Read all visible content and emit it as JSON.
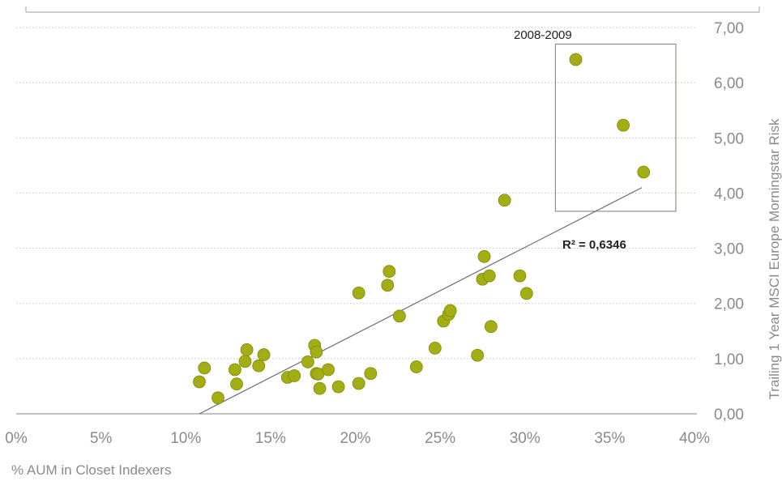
{
  "chart_data": {
    "type": "scatter",
    "title": "",
    "xlabel": "% AUM in Closet Indexers",
    "ylabel": "Trailing 1 Year MSCI Europe Morningstar Risk",
    "xlim": [
      0,
      0.4
    ],
    "ylim": [
      0,
      7
    ],
    "x_ticks": [
      "0%",
      "5%",
      "10%",
      "15%",
      "20%",
      "25%",
      "30%",
      "35%",
      "40%"
    ],
    "y_ticks": [
      "0,00",
      "1,00",
      "2,00",
      "3,00",
      "4,00",
      "5,00",
      "6,00",
      "7,00"
    ],
    "grid": true,
    "y_axis_position": "right",
    "series": [
      {
        "points": [
          [
            0.108,
            0.58
          ],
          [
            0.111,
            0.83
          ],
          [
            0.119,
            0.29
          ],
          [
            0.129,
            0.8
          ],
          [
            0.13,
            0.54
          ],
          [
            0.135,
            0.95
          ],
          [
            0.136,
            1.16
          ],
          [
            0.143,
            0.87
          ],
          [
            0.146,
            1.07
          ],
          [
            0.16,
            0.66
          ],
          [
            0.164,
            0.69
          ],
          [
            0.172,
            0.94
          ],
          [
            0.176,
            1.24
          ],
          [
            0.177,
            1.12
          ],
          [
            0.177,
            0.73
          ],
          [
            0.178,
            0.72
          ],
          [
            0.179,
            0.46
          ],
          [
            0.184,
            0.8
          ],
          [
            0.19,
            0.49
          ],
          [
            0.202,
            0.55
          ],
          [
            0.202,
            2.19
          ],
          [
            0.209,
            0.73
          ],
          [
            0.219,
            2.33
          ],
          [
            0.22,
            2.58
          ],
          [
            0.226,
            1.77
          ],
          [
            0.236,
            0.85
          ],
          [
            0.247,
            1.19
          ],
          [
            0.252,
            1.68
          ],
          [
            0.255,
            1.8
          ],
          [
            0.256,
            1.87
          ],
          [
            0.272,
            1.06
          ],
          [
            0.275,
            2.44
          ],
          [
            0.276,
            2.85
          ],
          [
            0.279,
            2.5
          ],
          [
            0.28,
            1.58
          ],
          [
            0.288,
            3.87
          ],
          [
            0.297,
            2.5
          ],
          [
            0.301,
            2.18
          ],
          [
            0.33,
            6.42
          ],
          [
            0.358,
            5.23
          ],
          [
            0.37,
            4.38
          ]
        ],
        "color": "#a3ad14"
      }
    ],
    "trendline": {
      "r_squared_label": "R² = 0,6346",
      "x": [
        0.108,
        0.369
      ],
      "y": [
        0.0,
        4.1
      ]
    },
    "annotations": [
      {
        "text": "2008-2009",
        "box_x": [
          0.318,
          0.389
        ],
        "box_y": [
          3.67,
          6.7
        ]
      }
    ]
  }
}
